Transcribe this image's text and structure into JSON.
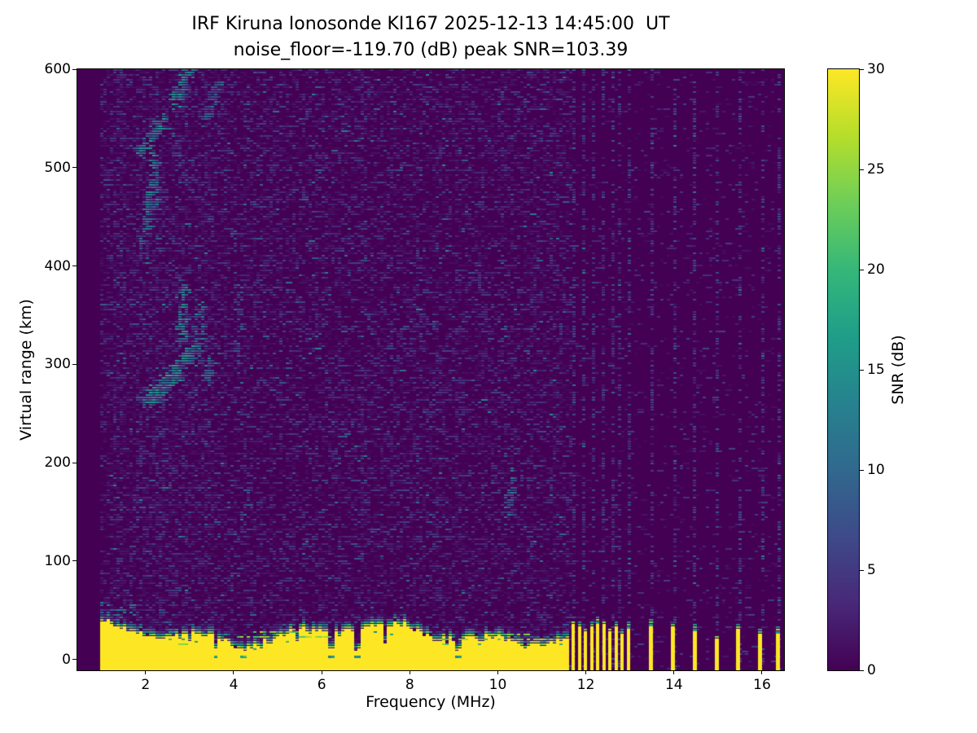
{
  "meta": {
    "background_color": "#ffffff",
    "text_color": "#000000"
  },
  "title": {
    "line1": "IRF Kiruna Ionosonde KI167 2025-12-13 14:45:00  UT",
    "line2": "noise_floor=-119.70 (dB) peak SNR=103.39"
  },
  "axes": {
    "xlabel": "Frequency (MHz)",
    "ylabel": "Virtual range (km)"
  },
  "colorbar": {
    "label": "SNR (dB)",
    "min": 0,
    "max": 30,
    "ticks": [
      0,
      5,
      10,
      15,
      20,
      25,
      30
    ]
  },
  "chart_data": {
    "type": "heatmap",
    "station": "IRF Kiruna Ionosonde KI167",
    "timestamp_ut": "2025-12-13 14:45:00",
    "noise_floor_db": -119.7,
    "peak_snr_db": 103.39,
    "title": "IRF Kiruna Ionosonde KI167 2025-12-13 14:45:00  UT",
    "subtitle": "noise_floor=-119.70 (dB) peak SNR=103.39",
    "xlabel": "Frequency (MHz)",
    "ylabel": "Virtual range (km)",
    "xlim": [
      0.45,
      16.5
    ],
    "ylim": [
      -11,
      600
    ],
    "xticks": [
      2,
      4,
      6,
      8,
      10,
      12,
      14,
      16
    ],
    "yticks": [
      0,
      100,
      200,
      300,
      400,
      500,
      600
    ],
    "snr_range": [
      0,
      30
    ],
    "colormap": "viridis",
    "colormap_stops": [
      "#440154",
      "#482878",
      "#3e4a89",
      "#31688e",
      "#26828e",
      "#1f9e89",
      "#35b779",
      "#6ece58",
      "#b5de2b",
      "#fde725"
    ],
    "legend_position": "right-colorbar",
    "grid": false,
    "sweep": {
      "freq_start_mhz": 0.95,
      "freq_end_mhz": 16.42
    },
    "noise": {
      "left_density": 0.42,
      "right_density": 0.07,
      "left_boost_freqs_mhz": [
        1.2,
        3.6
      ],
      "left_boost_density": 0.12
    },
    "ground_band": {
      "freq_start": 0.95,
      "freq_end": 11.65,
      "top_km_typical": 32,
      "deep_notch_freqs": [
        3.55,
        4.18,
        6.2,
        6.78,
        9.05
      ],
      "shallow_notch_freqs": [
        2.98,
        4.78,
        5.42,
        7.42,
        8.55,
        9.6,
        10.45,
        11.12
      ],
      "plume_max_freq_mhz": 1.75,
      "plume_top_km": 58,
      "band_top_streaks": {
        "count": 9,
        "km_min": 15,
        "km_max": 28
      }
    },
    "comb_bars": {
      "freq_start": 11.72,
      "freq_end": 12.97,
      "spacing_mhz": 0.138,
      "height_km_min": 26,
      "height_km_max": 38
    },
    "isolated_bars": [
      {
        "f": 13.47,
        "h": 36
      },
      {
        "f": 13.96,
        "h": 33
      },
      {
        "f": 14.46,
        "h": 31
      },
      {
        "f": 14.96,
        "h": 21
      },
      {
        "f": 15.45,
        "h": 30
      },
      {
        "f": 15.95,
        "h": 26
      },
      {
        "f": 16.35,
        "h": 29
      }
    ],
    "rfi_columns_strong": [
      11.7,
      11.95,
      12.17,
      12.36,
      12.56,
      12.76,
      12.95,
      13.45,
      13.95,
      14.45,
      14.95,
      15.45,
      15.95,
      16.35
    ],
    "rfi_columns_faint": [
      1.35,
      1.8,
      2.3,
      2.85,
      3.35,
      3.8,
      4.35,
      4.8,
      5.35,
      5.85,
      6.35,
      6.9,
      7.35,
      8.05,
      8.6,
      9.05,
      9.65,
      10.2,
      10.7,
      11.25
    ],
    "echo_traces": [
      {
        "f0": 1.9,
        "km0": 425,
        "f1": 2.1,
        "km1": 470,
        "thickness_km": 14,
        "points": 55,
        "snr": [
          5,
          14
        ]
      },
      {
        "f0": 2.08,
        "km0": 455,
        "f1": 2.18,
        "km1": 508,
        "thickness_km": 10,
        "points": 70,
        "snr": [
          7,
          17
        ]
      },
      {
        "f0": 1.85,
        "km0": 515,
        "f1": 2.35,
        "km1": 552,
        "thickness_km": 14,
        "points": 90,
        "snr": [
          7,
          18
        ]
      },
      {
        "f0": 2.6,
        "km0": 565,
        "f1": 2.95,
        "km1": 600,
        "thickness_km": 10,
        "points": 80,
        "snr": [
          8,
          18
        ]
      },
      {
        "f0": 3.35,
        "km0": 545,
        "f1": 3.65,
        "km1": 590,
        "thickness_km": 12,
        "points": 45,
        "snr": [
          5,
          13
        ]
      },
      {
        "f0": 2.0,
        "km0": 262,
        "f1": 2.6,
        "km1": 292,
        "thickness_km": 16,
        "points": 170,
        "snr": [
          7,
          19
        ]
      },
      {
        "f0": 2.55,
        "km0": 285,
        "f1": 3.0,
        "km1": 315,
        "thickness_km": 14,
        "points": 110,
        "snr": [
          7,
          18
        ]
      },
      {
        "f0": 2.78,
        "km0": 320,
        "f1": 2.85,
        "km1": 382,
        "thickness_km": 7,
        "points": 60,
        "snr": [
          8,
          17
        ]
      },
      {
        "f0": 3.12,
        "km0": 300,
        "f1": 3.2,
        "km1": 360,
        "thickness_km": 7,
        "points": 45,
        "snr": [
          6,
          15
        ]
      },
      {
        "f0": 3.35,
        "km0": 282,
        "f1": 3.45,
        "km1": 310,
        "thickness_km": 8,
        "points": 30,
        "snr": [
          6,
          14
        ]
      },
      {
        "f0": 4.0,
        "km0": 300,
        "f1": 4.1,
        "km1": 388,
        "thickness_km": 8,
        "points": 40,
        "snr": [
          4,
          11
        ]
      },
      {
        "f0": 10.18,
        "km0": 148,
        "f1": 10.24,
        "km1": 192,
        "thickness_km": 7,
        "points": 35,
        "snr": [
          6,
          14
        ]
      }
    ]
  }
}
